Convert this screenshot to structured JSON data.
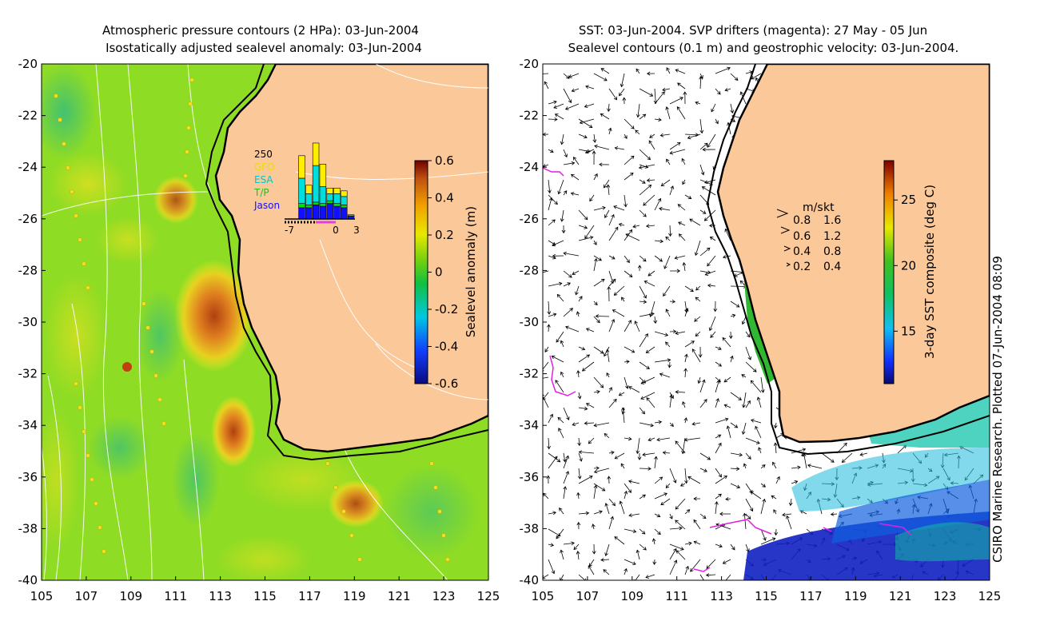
{
  "left_panel": {
    "title_line1": "Atmospheric pressure contours (2 HPa): 03-Jun-2004",
    "title_line2": "Isostatically adjusted sealevel anomaly: 03-Jun-2004",
    "colorbar": {
      "label": "Sealevel anomaly (m)",
      "ticks": [
        "0.6",
        "0.4",
        "0.2",
        "0",
        "-0.2",
        "-0.4",
        "-0.6"
      ],
      "range": [
        -0.6,
        0.6
      ]
    },
    "inset": {
      "count_label": "250",
      "series_labels": [
        "GFO",
        "ESA",
        "T/P",
        "Jason"
      ],
      "series_colors": [
        "#ffee00",
        "#00dddd",
        "#00dd00",
        "#1010ff"
      ],
      "x_ticks": [
        "-7",
        "0",
        "3"
      ],
      "bars": [
        {
          "day": -7,
          "jason": 0,
          "tp": 0,
          "esa": 0,
          "gfo": 0
        },
        {
          "day": -6,
          "jason": 0,
          "tp": 0,
          "esa": 0,
          "gfo": 0
        },
        {
          "day": -5,
          "jason": 40,
          "tp": 15,
          "esa": 90,
          "gfo": 80
        },
        {
          "day": -4,
          "jason": 40,
          "tp": 10,
          "esa": 40,
          "gfo": 30
        },
        {
          "day": -3,
          "jason": 50,
          "tp": 10,
          "esa": 130,
          "gfo": 80
        },
        {
          "day": -2,
          "jason": 45,
          "tp": 10,
          "esa": 60,
          "gfo": 80
        },
        {
          "day": -1,
          "jason": 55,
          "tp": 10,
          "esa": 25,
          "gfo": 20
        },
        {
          "day": 0,
          "jason": 45,
          "tp": 10,
          "esa": 35,
          "gfo": 20
        },
        {
          "day": 1,
          "jason": 40,
          "tp": 10,
          "esa": 30,
          "gfo": 20
        },
        {
          "day": 2,
          "jason": 10,
          "tp": 5,
          "esa": 0,
          "gfo": 0
        }
      ]
    }
  },
  "right_panel": {
    "title_line1": "SST: 03-Jun-2004. SVP drifters (magenta): 27 May - 05 Jun",
    "title_line2": "Sealevel contours (0.1 m) and geostrophic velocity: 03-Jun-2004.",
    "colorbar": {
      "label": "3-day SST composite (deg C)",
      "ticks": [
        "25",
        "20",
        "15"
      ],
      "range": [
        11,
        28
      ]
    },
    "velocity_legend": {
      "header_ms": "m/s",
      "header_kt": "kt",
      "rows": [
        {
          "ms": "0.8",
          "kt": "1.6"
        },
        {
          "ms": "0.6",
          "kt": "1.2"
        },
        {
          "ms": "0.4",
          "kt": "0.8"
        },
        {
          "ms": "0.2",
          "kt": "0.4"
        }
      ]
    }
  },
  "axes": {
    "lon_ticks": [
      "105",
      "107",
      "109",
      "111",
      "113",
      "115",
      "117",
      "119",
      "121",
      "123",
      "125"
    ],
    "lat_ticks": [
      "-20",
      "-22",
      "-24",
      "-26",
      "-28",
      "-30",
      "-32",
      "-34",
      "-36",
      "-38",
      "-40"
    ]
  },
  "credit": "CSIRO Marine Research. Plotted 07-Jun-2004 08:09",
  "colors": {
    "land": "#fbc89a",
    "ocean_base": "#9be024",
    "anomaly_high": "#e07020",
    "anomaly_low": "#00a0c0"
  }
}
